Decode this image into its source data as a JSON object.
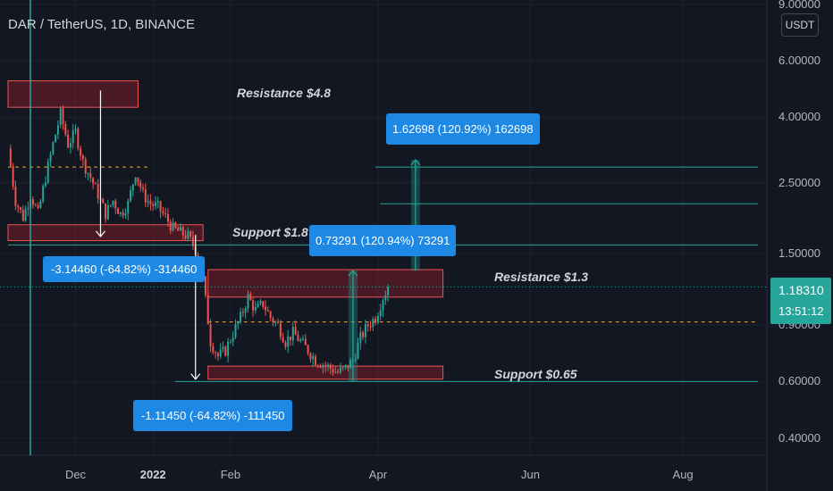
{
  "header": {
    "title": "DAR / TetherUS, 1D, BINANCE"
  },
  "axis": {
    "currency_label": "USDT"
  },
  "price_tag": {
    "price": "1.18310",
    "countdown": "13:51:12"
  },
  "annotations": {
    "resistance_high": "Resistance $4.8",
    "support_mid": "Support $1.8",
    "resistance_low": "Resistance $1.3",
    "support_low": "Support $0.65",
    "measure_drop1": "-3.14460 (-64.82%) -314460",
    "measure_drop2": "-1.11450 (-64.82%) -111450",
    "measure_rise1": "0.73291 (120.94%) 73291",
    "measure_rise2": "1.62698 (120.92%) 162698"
  },
  "colors": {
    "background": "#131722",
    "up": "#26a69a",
    "down": "#ef5350",
    "zone_fill": "#8b1e2a",
    "zone_border": "#ef5350",
    "target_line": "#26a69a",
    "dashed_level": "#f9a825",
    "badge": "#1e88e5"
  },
  "chart_data": {
    "type": "candlestick",
    "symbol": "DAR / TetherUS",
    "interval": "1D",
    "exchange": "BINANCE",
    "y_scale": "log",
    "ylim": [
      0.36,
      9.0
    ],
    "y_ticks": [
      {
        "value": 9.0,
        "label": "9.00000"
      },
      {
        "value": 6.0,
        "label": "6.00000"
      },
      {
        "value": 4.0,
        "label": "4.00000"
      },
      {
        "value": 2.5,
        "label": "2.50000"
      },
      {
        "value": 1.5,
        "label": "1.50000"
      },
      {
        "value": 0.9,
        "label": "0.90000"
      },
      {
        "value": 0.6,
        "label": "0.60000"
      },
      {
        "value": 0.4,
        "label": "0.40000"
      }
    ],
    "x_ticks": [
      {
        "label": "Dec",
        "date": "2021-12-01"
      },
      {
        "label": "2022",
        "date": "2022-01-01",
        "bold": true
      },
      {
        "label": "Feb",
        "date": "2022-02-01"
      },
      {
        "label": "Apr",
        "date": "2022-04-01"
      },
      {
        "label": "Jun",
        "date": "2022-06-01"
      },
      {
        "label": "Aug",
        "date": "2022-08-01"
      }
    ],
    "xlim": [
      "2021-11-04",
      "2022-08-31"
    ],
    "close_path": [
      [
        "2021-11-04",
        3.2
      ],
      [
        "2021-11-07",
        2.2
      ],
      [
        "2021-11-10",
        1.95
      ],
      [
        "2021-11-13",
        2.3
      ],
      [
        "2021-11-16",
        2.0
      ],
      [
        "2021-11-19",
        2.6
      ],
      [
        "2021-11-22",
        3.3
      ],
      [
        "2021-11-25",
        4.1
      ],
      [
        "2021-11-28",
        3.3
      ],
      [
        "2021-12-01",
        3.6
      ],
      [
        "2021-12-04",
        2.9
      ],
      [
        "2021-12-07",
        2.6
      ],
      [
        "2021-12-10",
        2.3
      ],
      [
        "2021-12-13",
        2.0
      ],
      [
        "2021-12-16",
        2.2
      ],
      [
        "2021-12-19",
        2.0
      ],
      [
        "2021-12-22",
        2.15
      ],
      [
        "2021-12-25",
        2.7
      ],
      [
        "2021-12-28",
        2.3
      ],
      [
        "2021-12-31",
        2.15
      ],
      [
        "2022-01-03",
        2.1
      ],
      [
        "2022-01-06",
        1.95
      ],
      [
        "2022-01-09",
        1.8
      ],
      [
        "2022-01-12",
        1.75
      ],
      [
        "2022-01-15",
        1.7
      ],
      [
        "2022-01-18",
        1.55
      ],
      [
        "2022-01-21",
        1.25
      ],
      [
        "2022-01-24",
        0.8
      ],
      [
        "2022-01-27",
        0.72
      ],
      [
        "2022-01-30",
        0.75
      ],
      [
        "2022-02-02",
        0.85
      ],
      [
        "2022-02-05",
        0.95
      ],
      [
        "2022-02-08",
        1.1
      ],
      [
        "2022-02-11",
        1.0
      ],
      [
        "2022-02-14",
        1.05
      ],
      [
        "2022-02-17",
        0.95
      ],
      [
        "2022-02-20",
        0.9
      ],
      [
        "2022-02-23",
        0.8
      ],
      [
        "2022-02-26",
        0.85
      ],
      [
        "2022-03-01",
        0.8
      ],
      [
        "2022-03-04",
        0.75
      ],
      [
        "2022-03-07",
        0.7
      ],
      [
        "2022-03-10",
        0.68
      ],
      [
        "2022-03-13",
        0.66
      ],
      [
        "2022-03-16",
        0.64
      ],
      [
        "2022-03-19",
        0.66
      ],
      [
        "2022-03-22",
        0.7
      ],
      [
        "2022-03-25",
        0.82
      ],
      [
        "2022-03-28",
        0.9
      ],
      [
        "2022-03-31",
        0.95
      ],
      [
        "2022-04-03",
        1.1
      ],
      [
        "2022-04-05",
        1.18
      ]
    ],
    "zones": [
      {
        "label": "Resistance $4.8",
        "low": 4.3,
        "high": 5.2,
        "start": "2021-11-04",
        "end": "2021-12-26"
      },
      {
        "label": "Support $1.8",
        "low": 1.65,
        "high": 1.85,
        "start": "2021-11-04",
        "end": "2022-01-21"
      },
      {
        "label": "Resistance $1.3",
        "low": 1.1,
        "high": 1.34,
        "start": "2022-01-23",
        "end": "2022-04-27"
      },
      {
        "label": "Support $0.65",
        "low": 0.61,
        "high": 0.67,
        "start": "2022-01-23",
        "end": "2022-04-27"
      }
    ],
    "target_lines": [
      {
        "price": 2.8,
        "start": "2022-03-31",
        "end": "2022-08-31"
      },
      {
        "price": 2.15,
        "start": "2022-04-02",
        "end": "2022-08-31"
      },
      {
        "price": 1.6,
        "start": "2021-11-04",
        "end": "2022-08-31"
      },
      {
        "price": 0.6,
        "start": "2022-01-10",
        "end": "2022-08-31"
      }
    ],
    "dashed_levels": [
      {
        "price": 2.8,
        "start": "2021-11-04",
        "end": "2021-12-30"
      },
      {
        "price": 0.92,
        "start": "2022-01-23",
        "end": "2022-08-31"
      }
    ],
    "measures": [
      {
        "text": "-3.14460 (-64.82%) -314460",
        "from_price": 4.85,
        "to_price": 1.7,
        "date": "2021-12-11"
      },
      {
        "text": "-1.11450 (-64.82%) -111450",
        "from_price": 1.72,
        "to_price": 0.61,
        "date": "2022-01-18"
      },
      {
        "text": "0.73291 (120.94%) 73291",
        "from_price": 0.6,
        "to_price": 1.33,
        "date": "2022-03-22"
      },
      {
        "text": "1.62698 (120.92%) 162698",
        "from_price": 1.33,
        "to_price": 2.95,
        "date": "2022-04-16"
      }
    ],
    "last_price": 1.1831,
    "countdown": "13:51:12"
  }
}
